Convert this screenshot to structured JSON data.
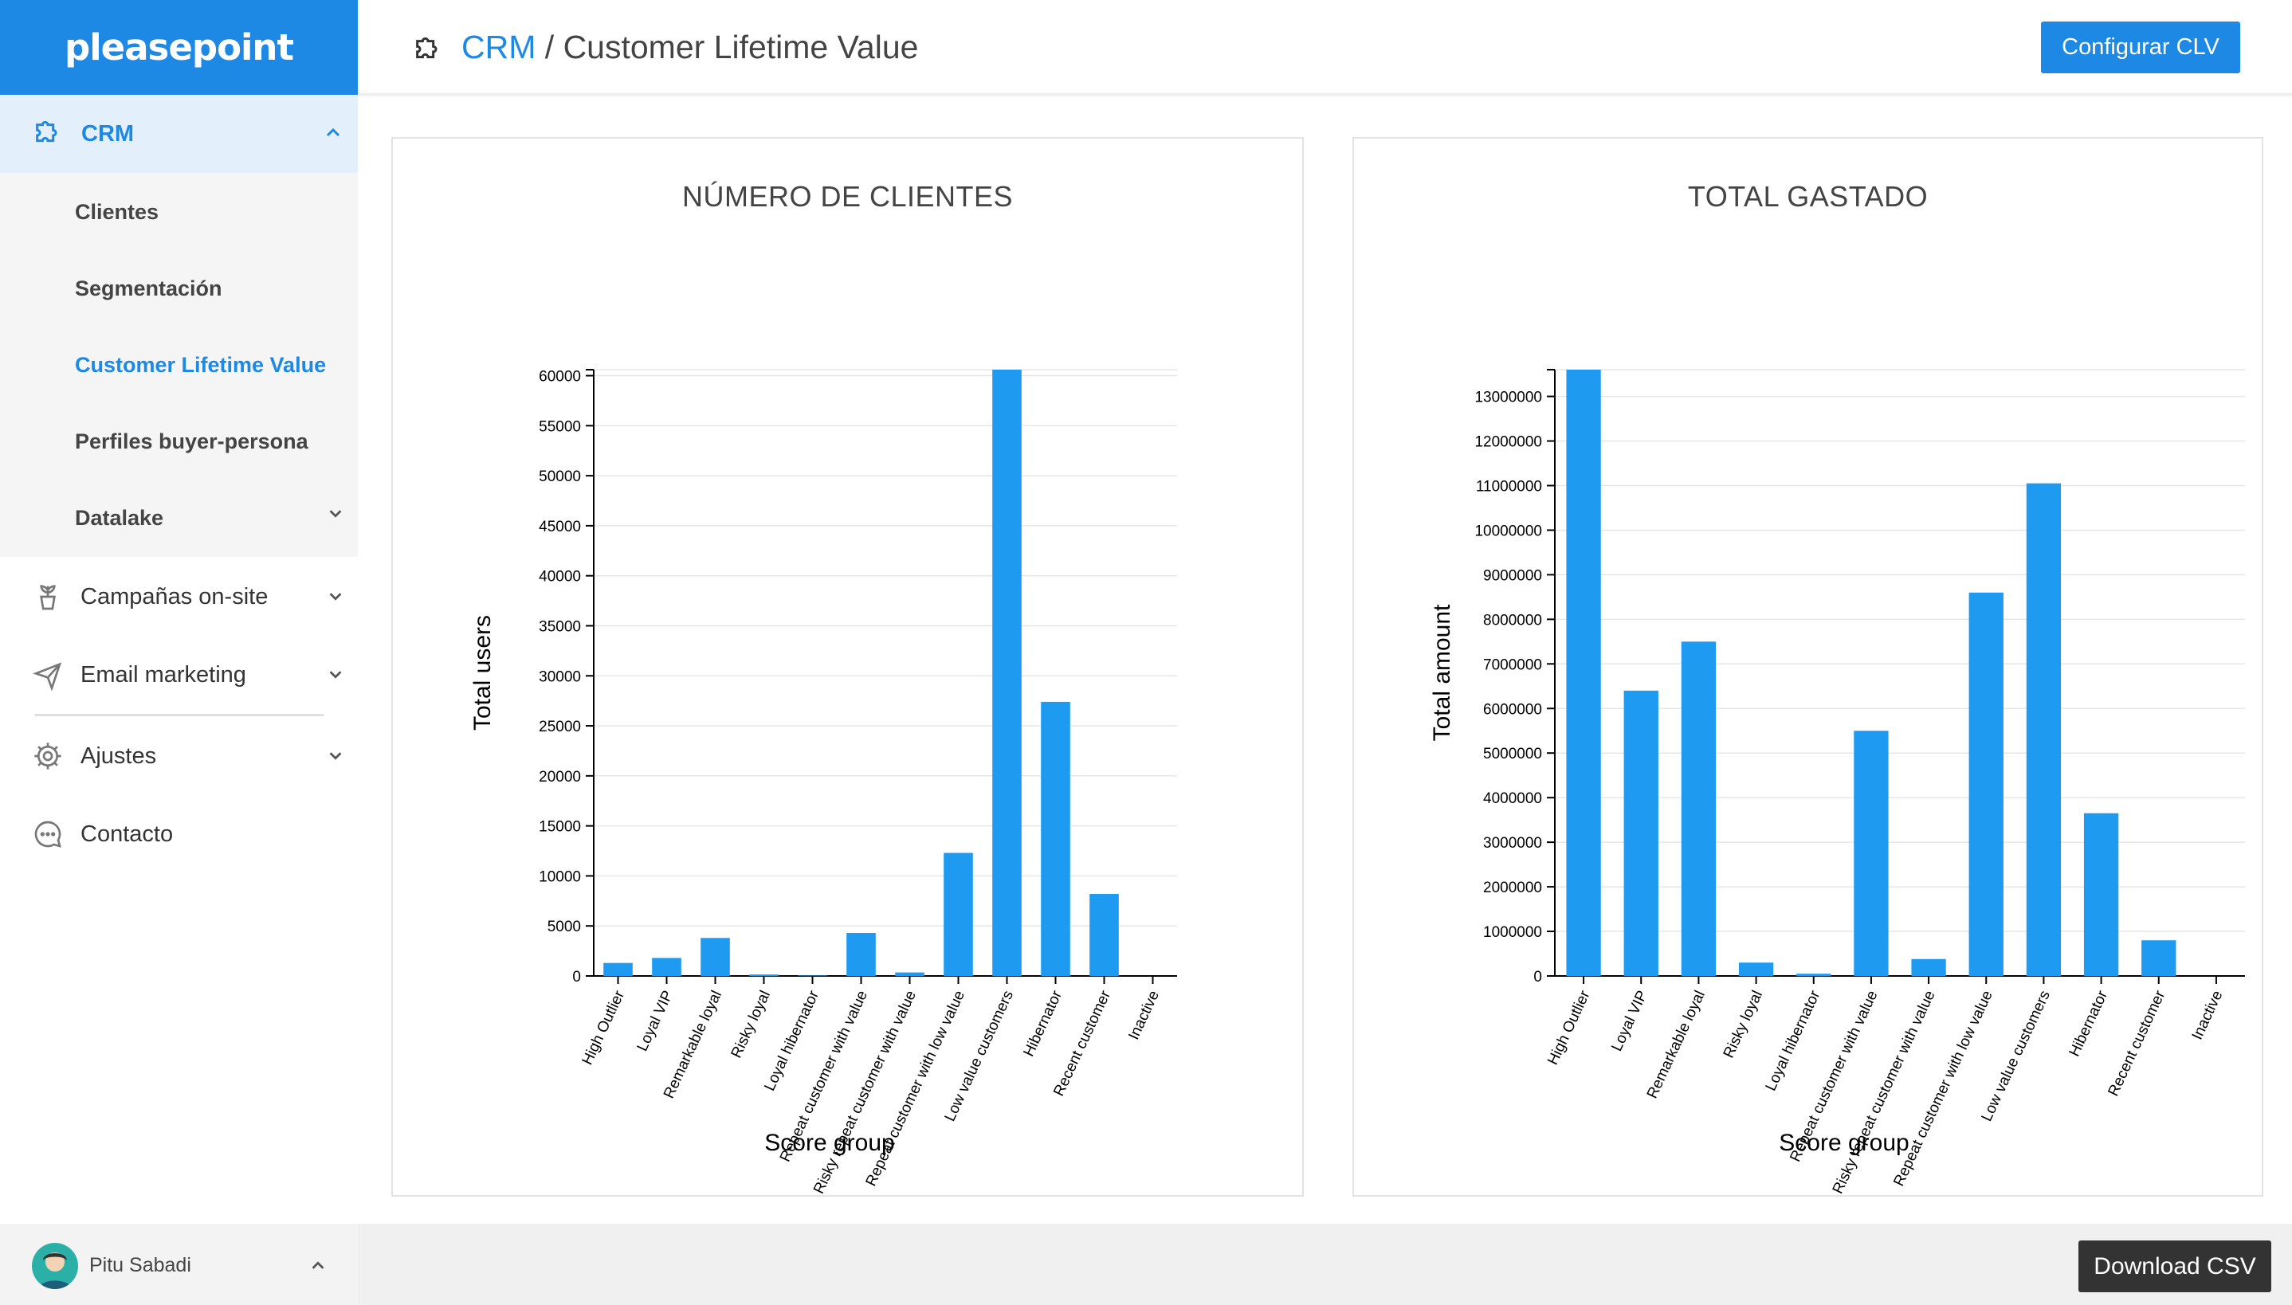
{
  "app": {
    "logo": "pleasepoint"
  },
  "sidebar": {
    "crm": {
      "label": "CRM",
      "icon": "puzzle-icon"
    },
    "submenu": [
      {
        "label": "Clientes",
        "active": false
      },
      {
        "label": "Segmentación",
        "active": false
      },
      {
        "label": "Customer Lifetime Value",
        "active": true
      },
      {
        "label": "Perfiles buyer-persona",
        "active": false
      },
      {
        "label": "Datalake",
        "active": false,
        "has_children": true
      }
    ],
    "items": [
      {
        "label": "Campañas on-site",
        "icon": "plant-icon"
      },
      {
        "label": "Email marketing",
        "icon": "paper-plane-icon"
      },
      {
        "label": "Ajustes",
        "icon": "gear-icon"
      },
      {
        "label": "Contacto",
        "icon": "chat-bubble-icon"
      }
    ],
    "user": {
      "name": "Pitu Sabadi"
    }
  },
  "header": {
    "breadcrumb_root": "CRM",
    "breadcrumb_sep": " / ",
    "breadcrumb_page": "Customer Lifetime Value",
    "config_button": "Configurar CLV"
  },
  "footer": {
    "download_button": "Download CSV"
  },
  "colors": {
    "accent": "#1e88e5",
    "bar": "#1e9bf0"
  },
  "chart_data": [
    {
      "type": "bar",
      "title": "NÚMERO DE CLIENTES",
      "xlabel": "Score group",
      "ylabel": "Total users",
      "categories": [
        "High Outlier",
        "Loyal VIP",
        "Remarkable loyal",
        "Risky loyal",
        "Loyal hibernator",
        "Repeat customer with value",
        "Risky repeat customer with value",
        "Repeat customer with low value",
        "Low value customers",
        "Hibernator",
        "Recent customer",
        "Inactive"
      ],
      "values": [
        1300,
        1800,
        3800,
        150,
        50,
        4300,
        350,
        12300,
        60600,
        27400,
        8200,
        0
      ],
      "ylim": [
        0,
        60600
      ],
      "yticks": [
        0,
        5000,
        10000,
        15000,
        20000,
        25000,
        30000,
        35000,
        40000,
        45000,
        50000,
        55000,
        60000
      ],
      "grid": true
    },
    {
      "type": "bar",
      "title": "TOTAL GASTADO",
      "xlabel": "Score group",
      "ylabel": "Total amount",
      "categories": [
        "High Outlier",
        "Loyal VIP",
        "Remarkable loyal",
        "Risky loyal",
        "Loyal hibernator",
        "Repeat customer with value",
        "Risky repeat customer with value",
        "Repeat customer with low value",
        "Low value customers",
        "Hibernator",
        "Recent customer",
        "Inactive"
      ],
      "values": [
        13600000,
        6400000,
        7500000,
        300000,
        50000,
        5500000,
        380000,
        8600000,
        11050000,
        3650000,
        800000,
        0
      ],
      "ylim": [
        0,
        13600000
      ],
      "yticks": [
        0,
        1000000,
        2000000,
        3000000,
        4000000,
        5000000,
        6000000,
        7000000,
        8000000,
        9000000,
        10000000,
        11000000,
        12000000,
        13000000
      ],
      "grid": true
    }
  ]
}
